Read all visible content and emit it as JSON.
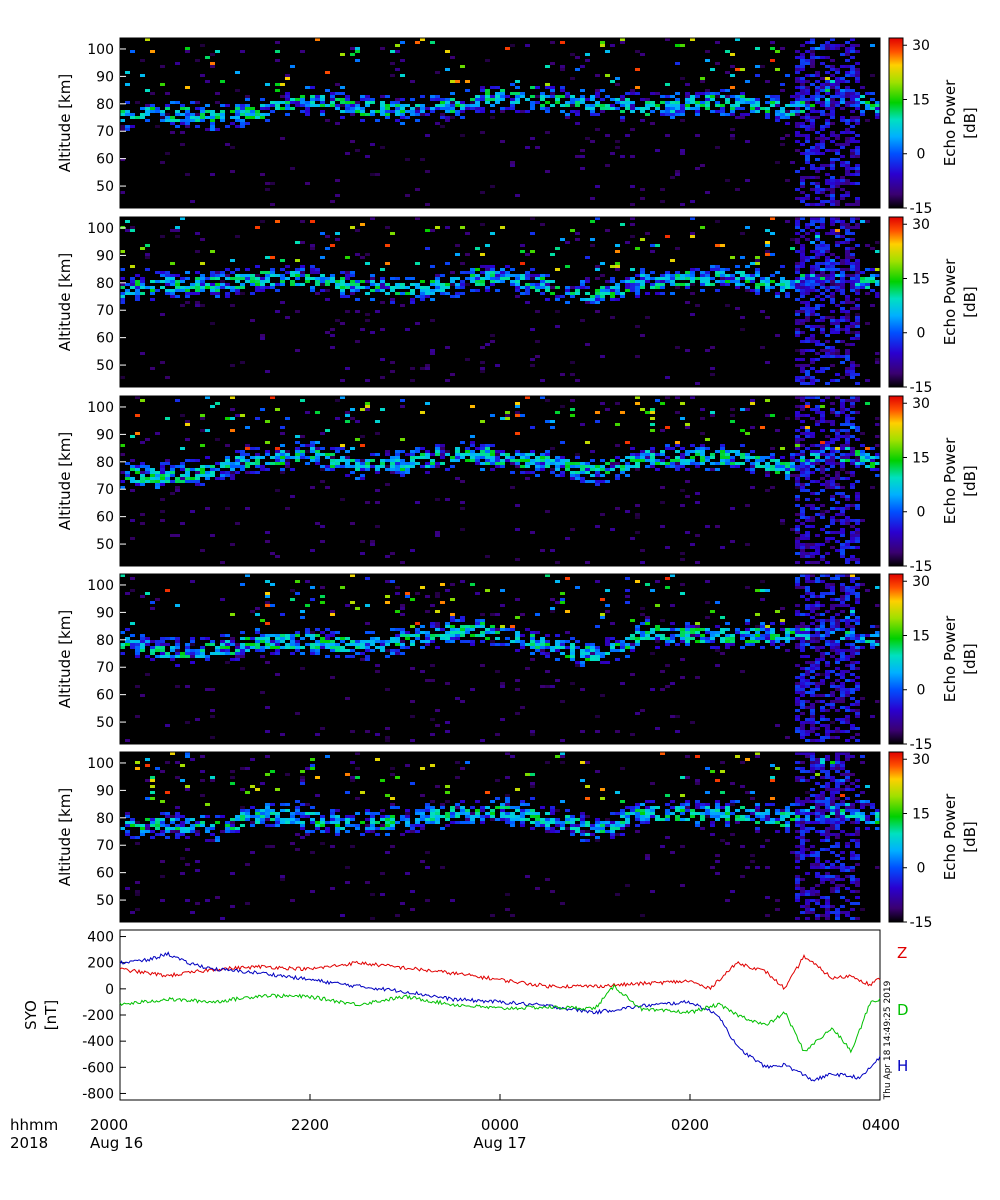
{
  "chart_data": [
    {
      "type": "heatmap",
      "panel": 1,
      "ylabel": "Altitude [km]",
      "y_ticks": [
        50,
        60,
        70,
        80,
        90,
        100
      ],
      "ylim": [
        42,
        104
      ],
      "colorbar": {
        "label_line1": "Echo Power",
        "label_line2": "[dB]",
        "ticks": [
          30,
          15,
          0,
          -15
        ],
        "range": [
          -15,
          32
        ]
      },
      "echo_layer_center_km": [
        [
          20.0,
          76
        ],
        [
          20.5,
          77
        ],
        [
          21.0,
          76
        ],
        [
          21.5,
          78
        ],
        [
          22.0,
          82
        ],
        [
          22.5,
          79
        ],
        [
          23.0,
          78
        ],
        [
          23.5,
          80
        ],
        [
          24.0,
          83
        ],
        [
          24.5,
          82
        ],
        [
          25.0,
          81
        ],
        [
          25.5,
          79
        ],
        [
          26.0,
          81
        ],
        [
          26.5,
          81
        ],
        [
          27.0,
          78
        ],
        [
          27.5,
          84
        ],
        [
          28.0,
          79
        ]
      ]
    },
    {
      "type": "heatmap",
      "panel": 2,
      "ylabel": "Altitude [km]",
      "y_ticks": [
        50,
        60,
        70,
        80,
        90,
        100
      ],
      "ylim": [
        42,
        104
      ],
      "colorbar": {
        "label_line1": "Echo Power",
        "label_line2": "[dB]",
        "ticks": [
          30,
          15,
          0,
          -15
        ],
        "range": [
          -15,
          32
        ]
      },
      "echo_layer_center_km": [
        [
          20.0,
          78
        ],
        [
          20.5,
          80
        ],
        [
          21.0,
          80
        ],
        [
          21.5,
          82
        ],
        [
          22.0,
          82
        ],
        [
          22.5,
          79
        ],
        [
          23.0,
          78
        ],
        [
          23.5,
          80
        ],
        [
          24.0,
          83
        ],
        [
          24.5,
          79
        ],
        [
          25.0,
          76
        ],
        [
          25.5,
          81
        ],
        [
          26.0,
          82
        ],
        [
          26.5,
          82
        ],
        [
          27.0,
          80
        ],
        [
          27.5,
          84
        ],
        [
          28.0,
          80
        ]
      ]
    },
    {
      "type": "heatmap",
      "panel": 3,
      "ylabel": "Altitude [km]",
      "y_ticks": [
        50,
        60,
        70,
        80,
        90,
        100
      ],
      "ylim": [
        42,
        104
      ],
      "colorbar": {
        "label_line1": "Echo Power",
        "label_line2": "[dB]",
        "ticks": [
          30,
          15,
          0,
          -15
        ],
        "range": [
          -15,
          32
        ]
      },
      "echo_layer_center_km": [
        [
          20.0,
          76
        ],
        [
          20.5,
          75
        ],
        [
          21.0,
          78
        ],
        [
          21.5,
          82
        ],
        [
          22.0,
          83
        ],
        [
          22.5,
          79
        ],
        [
          23.0,
          80
        ],
        [
          23.5,
          83
        ],
        [
          24.0,
          82
        ],
        [
          24.5,
          80
        ],
        [
          25.0,
          77
        ],
        [
          25.5,
          82
        ],
        [
          26.0,
          82
        ],
        [
          26.5,
          82
        ],
        [
          27.0,
          78
        ],
        [
          27.5,
          84
        ],
        [
          28.0,
          80
        ]
      ]
    },
    {
      "type": "heatmap",
      "panel": 4,
      "ylabel": "Altitude [km]",
      "y_ticks": [
        50,
        60,
        70,
        80,
        90,
        100
      ],
      "ylim": [
        42,
        104
      ],
      "colorbar": {
        "label_line1": "Echo Power",
        "label_line2": "[dB]",
        "ticks": [
          30,
          15,
          0,
          -15
        ],
        "range": [
          -15,
          32
        ]
      },
      "echo_layer_center_km": [
        [
          20.0,
          80
        ],
        [
          20.5,
          76
        ],
        [
          21.0,
          77
        ],
        [
          21.5,
          80
        ],
        [
          22.0,
          80
        ],
        [
          22.5,
          78
        ],
        [
          23.0,
          80
        ],
        [
          23.5,
          84
        ],
        [
          24.0,
          83
        ],
        [
          24.5,
          78
        ],
        [
          25.0,
          75
        ],
        [
          25.5,
          82
        ],
        [
          26.0,
          82
        ],
        [
          26.5,
          82
        ],
        [
          27.0,
          82
        ],
        [
          27.5,
          84
        ],
        [
          28.0,
          80
        ]
      ]
    },
    {
      "type": "heatmap",
      "panel": 5,
      "ylabel": "Altitude [km]",
      "y_ticks": [
        50,
        60,
        70,
        80,
        90,
        100
      ],
      "ylim": [
        42,
        104
      ],
      "colorbar": {
        "label_line1": "Echo Power",
        "label_line2": "[dB]",
        "ticks": [
          30,
          15,
          0,
          -15
        ],
        "range": [
          -15,
          32
        ]
      },
      "echo_layer_center_km": [
        [
          20.0,
          77
        ],
        [
          20.5,
          78
        ],
        [
          21.0,
          77
        ],
        [
          21.5,
          82
        ],
        [
          22.0,
          80
        ],
        [
          22.5,
          78
        ],
        [
          23.0,
          80
        ],
        [
          23.5,
          82
        ],
        [
          24.0,
          83
        ],
        [
          24.5,
          80
        ],
        [
          25.0,
          76
        ],
        [
          25.5,
          82
        ],
        [
          26.0,
          82
        ],
        [
          26.5,
          82
        ],
        [
          27.0,
          80
        ],
        [
          27.5,
          84
        ],
        [
          28.0,
          80
        ]
      ]
    },
    {
      "type": "line",
      "ylabel_line1": "SYO",
      "ylabel_line2": "[nT]",
      "ylim": [
        -850,
        450
      ],
      "y_ticks": [
        400,
        200,
        0,
        -200,
        -400,
        -600,
        -800
      ],
      "series": [
        {
          "name": "Z",
          "color": "#e00000",
          "x": [
            20.0,
            20.5,
            21.0,
            21.5,
            22.0,
            22.5,
            23.0,
            23.5,
            24.0,
            24.5,
            25.0,
            25.5,
            26.0,
            26.2,
            26.5,
            26.8,
            27.0,
            27.2,
            27.5,
            27.7,
            27.9,
            28.0
          ],
          "values": [
            150,
            100,
            150,
            170,
            150,
            200,
            160,
            120,
            70,
            20,
            20,
            40,
            60,
            0,
            200,
            130,
            0,
            250,
            80,
            100,
            30,
            80
          ]
        },
        {
          "name": "H",
          "color": "#0000c0",
          "x": [
            20.0,
            20.3,
            20.5,
            20.7,
            21.0,
            21.5,
            22.0,
            22.5,
            23.0,
            23.5,
            24.0,
            24.5,
            25.0,
            25.5,
            26.0,
            26.3,
            26.5,
            26.8,
            27.0,
            27.3,
            27.5,
            27.8,
            28.0
          ],
          "values": [
            200,
            220,
            270,
            200,
            150,
            120,
            70,
            20,
            -20,
            -80,
            -100,
            -130,
            -180,
            -130,
            -100,
            -200,
            -450,
            -600,
            -580,
            -700,
            -650,
            -680,
            -520
          ]
        },
        {
          "name": "D",
          "color": "#00c000",
          "x": [
            20.0,
            20.5,
            21.0,
            21.5,
            22.0,
            22.5,
            23.0,
            23.5,
            24.0,
            24.5,
            25.0,
            25.2,
            25.5,
            26.0,
            26.3,
            26.5,
            26.8,
            27.0,
            27.2,
            27.5,
            27.7,
            27.9,
            28.0
          ],
          "values": [
            -120,
            -80,
            -100,
            -50,
            -60,
            -120,
            -60,
            -120,
            -150,
            -140,
            -150,
            20,
            -160,
            -180,
            -120,
            -200,
            -280,
            -180,
            -480,
            -300,
            -480,
            -100,
            -80
          ]
        }
      ]
    }
  ],
  "x_axis": {
    "row1_label": "hhmm",
    "row2_label": "2018",
    "ticks": [
      {
        "x": 20,
        "time": "2000",
        "date": "Aug 16"
      },
      {
        "x": 22,
        "time": "2200",
        "date": ""
      },
      {
        "x": 24,
        "time": "0000",
        "date": "Aug 17"
      },
      {
        "x": 26,
        "time": "0200",
        "date": ""
      },
      {
        "x": 28,
        "time": "0400",
        "date": ""
      }
    ]
  },
  "timestamp": "Thu Apr 18 14:49:25 2019"
}
